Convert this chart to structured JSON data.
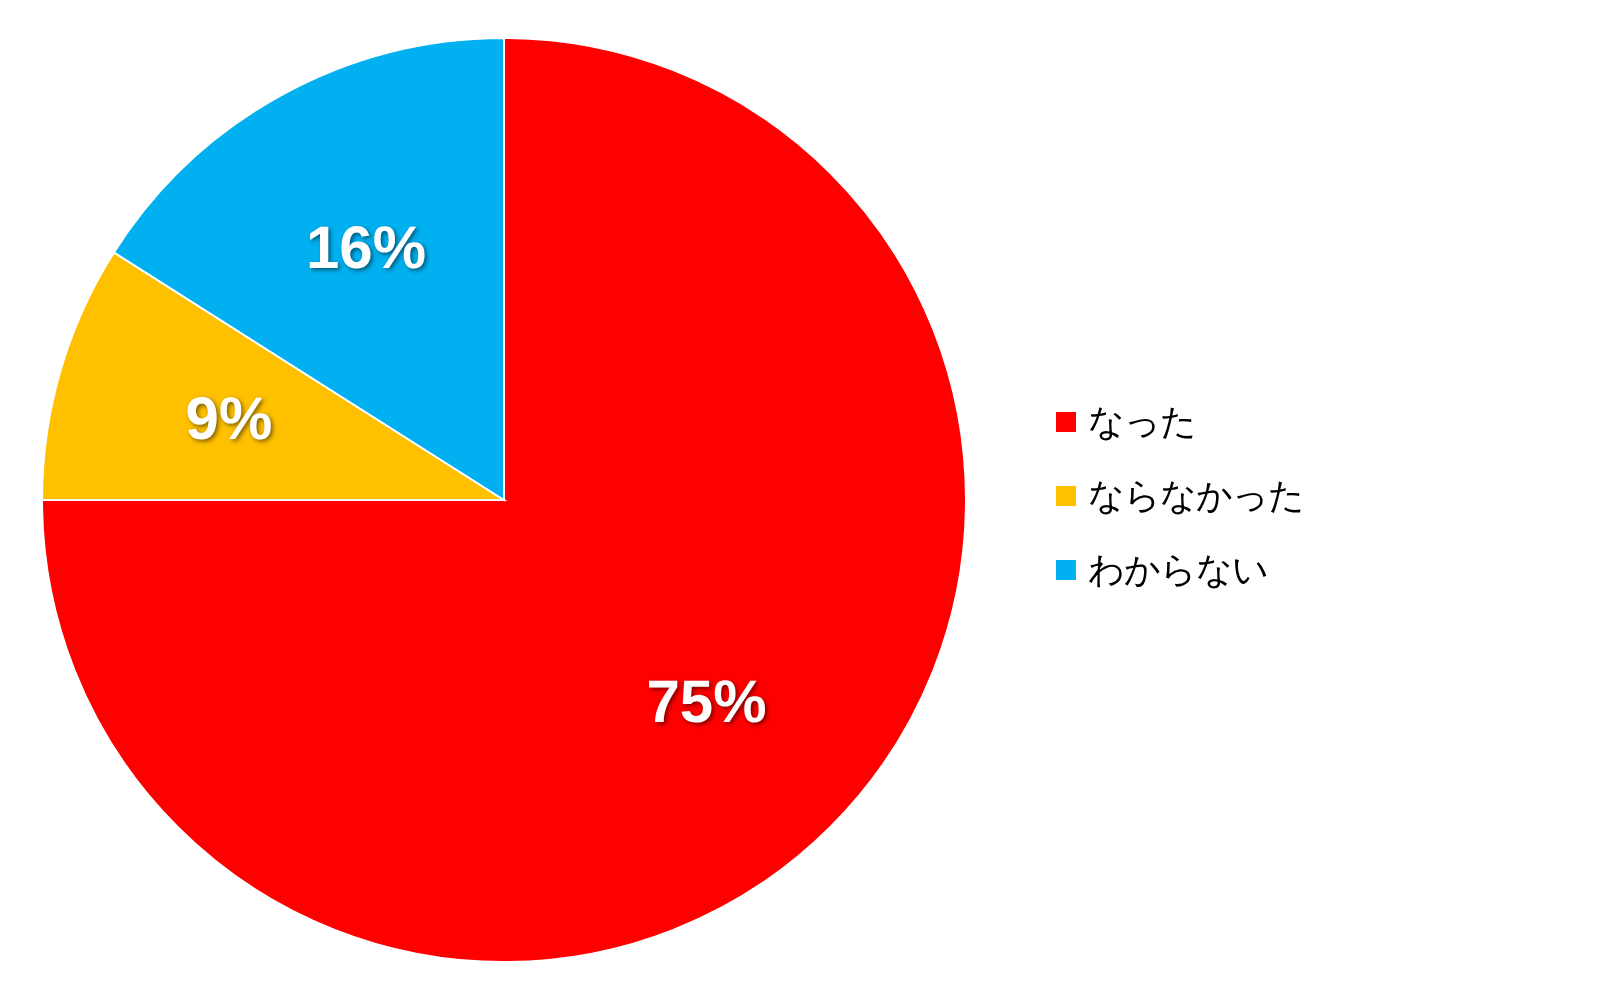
{
  "chart_data": {
    "type": "pie",
    "categories": [
      "なった",
      "ならなかった",
      "わからない"
    ],
    "values": [
      75,
      9,
      16
    ],
    "colors": [
      "#ff0000",
      "#ffc000",
      "#00b0f0"
    ],
    "value_labels": [
      "75%",
      "9%",
      "16%"
    ],
    "legend": "right"
  }
}
